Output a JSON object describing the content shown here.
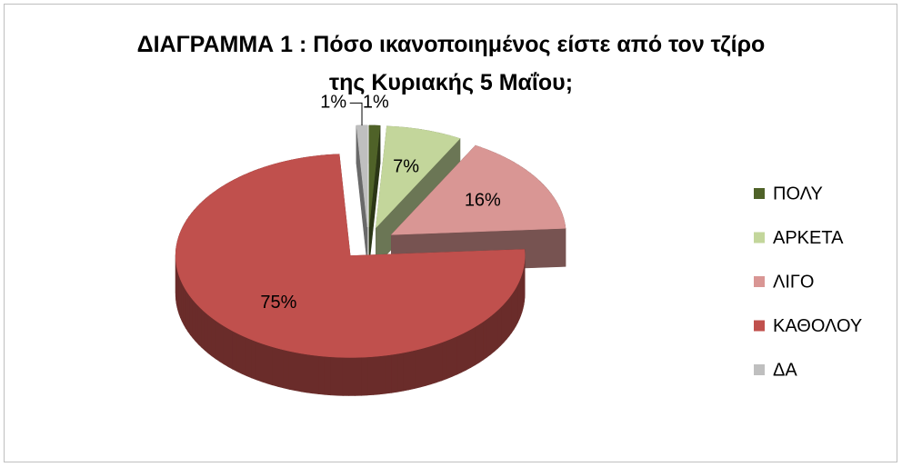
{
  "chart_data": {
    "type": "pie",
    "title": "ΔΙΑΓΡΑΜΜΑ 1 : Πόσο ικανοποιημένος είστε από τον τζίρο της Κυριακής 5 Μαΐου;",
    "categories": [
      "ΠΟΛΥ",
      "ΑΡΚΕΤΑ",
      "ΛΙΓΟ",
      "ΚΑΘΟΛΟΥ",
      "ΔΑ"
    ],
    "values": [
      1,
      7,
      16,
      75,
      1
    ],
    "value_labels": [
      "1%",
      "7%",
      "16%",
      "75%",
      "1%"
    ],
    "colors": [
      "#4f6228",
      "#c3d69b",
      "#d99694",
      "#c0504d",
      "#bfbfbf"
    ],
    "legend": "right"
  }
}
